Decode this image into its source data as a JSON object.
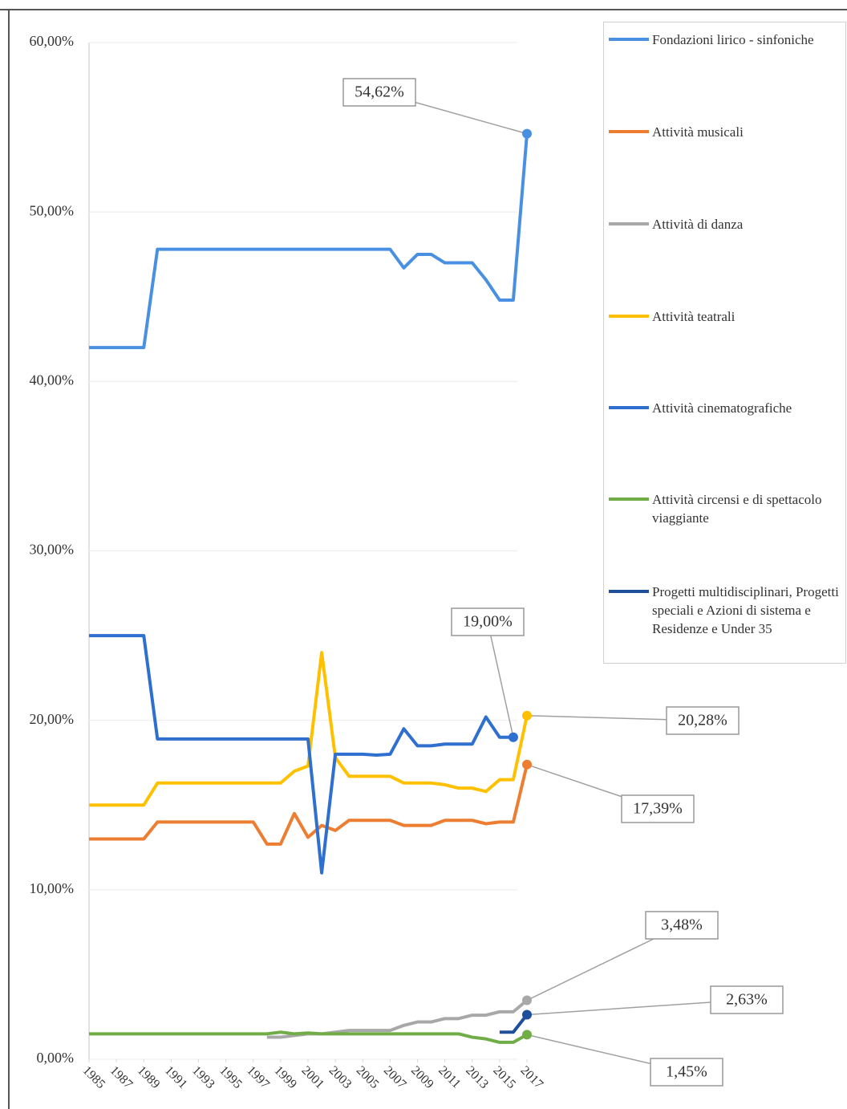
{
  "chart_data": {
    "type": "line",
    "x": [
      1985,
      1986,
      1987,
      1988,
      1989,
      1990,
      1991,
      1992,
      1993,
      1994,
      1995,
      1996,
      1997,
      1998,
      1999,
      2000,
      2001,
      2002,
      2003,
      2004,
      2005,
      2006,
      2007,
      2008,
      2009,
      2010,
      2011,
      2012,
      2013,
      2014,
      2015,
      2016,
      2017
    ],
    "xlim": [
      1985,
      2017
    ],
    "xticks": [
      1985,
      1987,
      1989,
      1991,
      1993,
      1995,
      1997,
      1999,
      2001,
      2003,
      2005,
      2007,
      2009,
      2011,
      2013,
      2015,
      2017
    ],
    "ylim": [
      0,
      60
    ],
    "yticks": [
      {
        "value": 0,
        "label": "0,00%"
      },
      {
        "value": 10,
        "label": "10,00%"
      },
      {
        "value": 20,
        "label": "20,00%"
      },
      {
        "value": 30,
        "label": "30,00%"
      },
      {
        "value": 40,
        "label": "40,00%"
      },
      {
        "value": 50,
        "label": "50,00%"
      },
      {
        "value": 60,
        "label": "60,00%"
      }
    ],
    "grid": true,
    "series": [
      {
        "name": "Fondazioni lirico - sinfoniche",
        "color": "#4a90e2",
        "values": [
          42,
          42,
          42,
          42,
          42,
          47.8,
          47.8,
          47.8,
          47.8,
          47.8,
          47.8,
          47.8,
          47.8,
          47.8,
          47.8,
          47.8,
          47.8,
          47.8,
          47.8,
          47.8,
          47.8,
          47.8,
          47.8,
          46.7,
          47.5,
          47.5,
          47,
          47,
          47,
          46,
          44.8,
          44.8,
          54.62
        ],
        "value_labels": [
          null,
          null,
          null,
          null,
          null,
          null,
          null,
          null,
          null,
          null,
          null,
          null,
          null,
          null,
          null,
          null,
          null,
          null,
          null,
          null,
          null,
          null,
          null,
          null,
          null,
          null,
          null,
          null,
          null,
          null,
          null,
          null,
          "54,62%"
        ]
      },
      {
        "name": "Attività musicali",
        "color": "#ed7d31",
        "values": [
          13,
          13,
          13,
          13,
          13,
          14,
          14,
          14,
          14,
          14,
          14,
          14,
          14,
          12.7,
          12.7,
          14.5,
          13.1,
          13.8,
          13.5,
          14.1,
          14.1,
          14.1,
          14.1,
          13.8,
          13.8,
          13.8,
          14.1,
          14.1,
          14.1,
          13.9,
          14,
          14,
          17.39
        ],
        "value_labels": [
          null,
          null,
          null,
          null,
          null,
          null,
          null,
          null,
          null,
          null,
          null,
          null,
          null,
          null,
          null,
          null,
          null,
          null,
          null,
          null,
          null,
          null,
          null,
          null,
          null,
          null,
          null,
          null,
          null,
          null,
          null,
          null,
          "17,39%"
        ]
      },
      {
        "name": "Attività di danza",
        "color": "#a8a8a8",
        "values": [
          null,
          null,
          null,
          null,
          null,
          null,
          null,
          null,
          null,
          null,
          null,
          null,
          null,
          1.3,
          1.3,
          1.4,
          1.5,
          1.5,
          1.6,
          1.7,
          1.7,
          1.7,
          1.7,
          2,
          2.2,
          2.2,
          2.4,
          2.4,
          2.6,
          2.6,
          2.8,
          2.8,
          3.48
        ],
        "value_labels": [
          null,
          null,
          null,
          null,
          null,
          null,
          null,
          null,
          null,
          null,
          null,
          null,
          null,
          null,
          null,
          null,
          null,
          null,
          null,
          null,
          null,
          null,
          null,
          null,
          null,
          null,
          null,
          null,
          null,
          null,
          null,
          null,
          "3,48%"
        ]
      },
      {
        "name": "Attività teatrali",
        "color": "#ffc000",
        "values": [
          15,
          15,
          15,
          15,
          15,
          16.3,
          16.3,
          16.3,
          16.3,
          16.3,
          16.3,
          16.3,
          16.3,
          16.3,
          16.3,
          17,
          17.3,
          24,
          17.8,
          16.7,
          16.7,
          16.7,
          16.7,
          16.3,
          16.3,
          16.3,
          16.2,
          16,
          16,
          15.8,
          16.5,
          16.5,
          20.28
        ],
        "value_labels": [
          null,
          null,
          null,
          null,
          null,
          null,
          null,
          null,
          null,
          null,
          null,
          null,
          null,
          null,
          null,
          null,
          null,
          null,
          null,
          null,
          null,
          null,
          null,
          null,
          null,
          null,
          null,
          null,
          null,
          null,
          null,
          null,
          "20,28%"
        ]
      },
      {
        "name": "Attività cinematografiche",
        "color": "#2e6fcf",
        "values": [
          25,
          25,
          25,
          25,
          25,
          18.9,
          18.9,
          18.9,
          18.9,
          18.9,
          18.9,
          18.9,
          18.9,
          18.9,
          18.9,
          18.9,
          18.9,
          11,
          18,
          18,
          18,
          17.95,
          18,
          19.5,
          18.5,
          18.5,
          18.6,
          18.6,
          18.6,
          20.2,
          19,
          19,
          null
        ],
        "value_labels": [
          null,
          null,
          null,
          null,
          null,
          null,
          null,
          null,
          null,
          null,
          null,
          null,
          null,
          null,
          null,
          null,
          null,
          null,
          null,
          null,
          null,
          null,
          null,
          null,
          null,
          null,
          null,
          null,
          null,
          null,
          null,
          "19,00%",
          null
        ]
      },
      {
        "name": "Attività circensi e di spettacolo viaggiante",
        "color": "#70ad47",
        "values": [
          1.5,
          1.5,
          1.5,
          1.5,
          1.5,
          1.5,
          1.5,
          1.5,
          1.5,
          1.5,
          1.5,
          1.5,
          1.5,
          1.5,
          1.6,
          1.5,
          1.55,
          1.5,
          1.5,
          1.5,
          1.5,
          1.5,
          1.5,
          1.5,
          1.5,
          1.5,
          1.5,
          1.5,
          1.3,
          1.2,
          1,
          1,
          1.45
        ],
        "value_labels": [
          null,
          null,
          null,
          null,
          null,
          null,
          null,
          null,
          null,
          null,
          null,
          null,
          null,
          null,
          null,
          null,
          null,
          null,
          null,
          null,
          null,
          null,
          null,
          null,
          null,
          null,
          null,
          null,
          null,
          null,
          null,
          null,
          "1,45%"
        ]
      },
      {
        "name": "Progetti multidisciplinari, Progetti speciali e Azioni di sistema e Residenze e Under 35",
        "color": "#1f4e9a",
        "values": [
          null,
          null,
          null,
          null,
          null,
          null,
          null,
          null,
          null,
          null,
          null,
          null,
          null,
          null,
          null,
          null,
          null,
          null,
          null,
          null,
          null,
          null,
          null,
          null,
          null,
          null,
          null,
          null,
          null,
          null,
          1.6,
          1.6,
          2.63
        ],
        "value_labels": [
          null,
          null,
          null,
          null,
          null,
          null,
          null,
          null,
          null,
          null,
          null,
          null,
          null,
          null,
          null,
          null,
          null,
          null,
          null,
          null,
          null,
          null,
          null,
          null,
          null,
          null,
          null,
          null,
          null,
          null,
          null,
          null,
          "2,63%"
        ]
      }
    ]
  }
}
